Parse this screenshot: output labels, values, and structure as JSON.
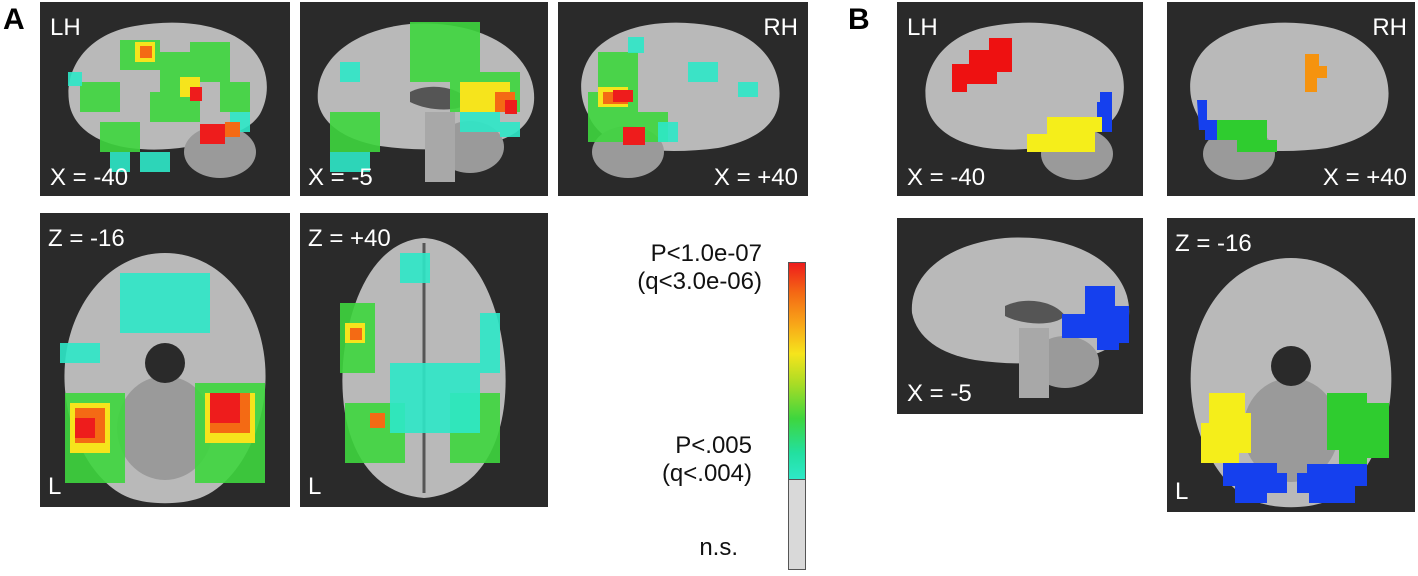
{
  "panels": {
    "a": {
      "letter": "A",
      "tiles": [
        {
          "id": "a1",
          "labels": {
            "tl": "LH",
            "bl": "X = -40"
          }
        },
        {
          "id": "a2",
          "labels": {
            "bl": "X = -5"
          }
        },
        {
          "id": "a3",
          "labels": {
            "tr": "RH",
            "br": "X = +40"
          }
        },
        {
          "id": "a4",
          "labels": {
            "tl": "Z = -16",
            "bl": "L"
          }
        },
        {
          "id": "a5",
          "labels": {
            "tl": "Z = +40",
            "bl": "L"
          }
        }
      ]
    },
    "b": {
      "letter": "B",
      "tiles": [
        {
          "id": "b1",
          "labels": {
            "tl": "LH",
            "bl": "X = -40"
          }
        },
        {
          "id": "b2",
          "labels": {
            "tr": "RH",
            "br": "X = +40"
          }
        },
        {
          "id": "b3",
          "labels": {
            "bl": "X = -5"
          }
        },
        {
          "id": "b4",
          "labels": {
            "tl": "Z = -16",
            "bl": "L"
          }
        }
      ]
    }
  },
  "colorbar": {
    "top_label_line1": "P<1.0e-07",
    "top_label_line2": "(q<3.0e-06)",
    "mid_label_line1": "P<.005",
    "mid_label_line2": "(q<.004)",
    "ns_label": "n.s.",
    "colors": {
      "max": "#ee1c1c",
      "mid": "#f6e41c",
      "min": "#2ee8c8",
      "ns": "#d9d9d9"
    }
  },
  "colors": {
    "tile_bg": "#2a2a2a",
    "brain": "#b9b9b9",
    "cerebellum": "#9a9a9a",
    "roi_red": "#ee1111",
    "roi_orange": "#f5930f",
    "roi_yellow": "#f5ee1a",
    "roi_blue": "#1540ee",
    "roi_green": "#2fcc2f"
  }
}
